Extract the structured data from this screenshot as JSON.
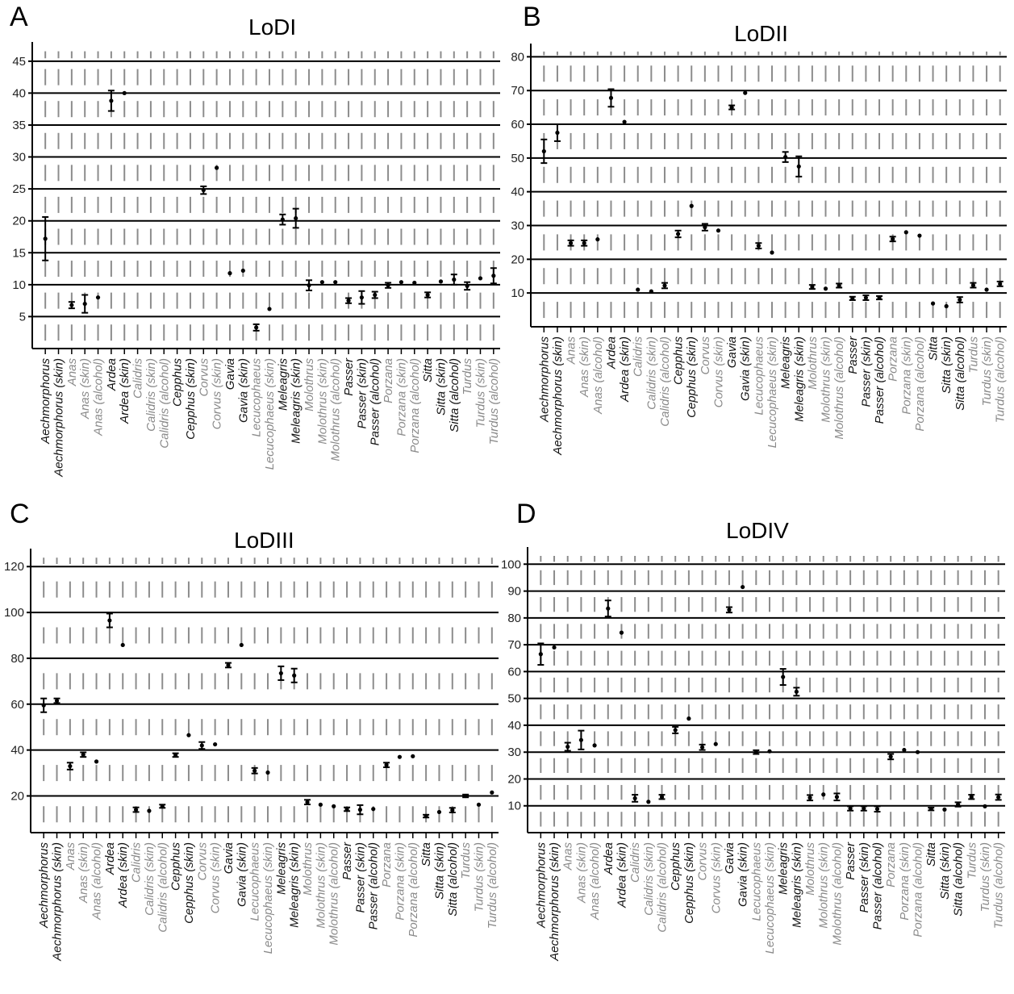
{
  "colors": {
    "dark_label": "#111111",
    "gray_label": "#8a8a8a",
    "grid": "#000000",
    "gap_tick": "#8c8c8c",
    "point": "#000000"
  },
  "chart_data": [
    {
      "type": "scatter",
      "panel": "A",
      "title": "LoDI",
      "ylim": [
        0,
        47
      ],
      "yticks": [
        5,
        10,
        15,
        20,
        25,
        30,
        35,
        40,
        45
      ],
      "grid": true,
      "categories": [
        "Aechmorphorus",
        "Aechmorphorus (skin)",
        "Anas",
        "Anas (skin)",
        "Anas (alcohol)",
        "Ardea",
        "Ardea (skin)",
        "Calidris",
        "Calidris (skin)",
        "Calidris (alcohol)",
        "Cepphus",
        "Cepphus (skin)",
        "Corvus",
        "Corvus (skin)",
        "Gavia",
        "Gavia (skin)",
        "Lecucophaeus",
        "Lecucophaeus (skin)",
        "Meleagris",
        "Meleagris (skin)",
        "Molothrus",
        "Molothrus (skin)",
        "Molothrus (alcohol)",
        "Passer",
        "Passer (skin)",
        "Passer (alcohol)",
        "Porzana",
        "Porzana (skin)",
        "Porzana (alcohol)",
        "Sitta",
        "Sitta (skin)",
        "Sitta (alcohol)",
        "Turdus",
        "Turdus (skin)",
        "Turdus (alcohol)"
      ],
      "label_gray": [
        false,
        false,
        true,
        true,
        true,
        false,
        false,
        true,
        true,
        true,
        false,
        false,
        true,
        true,
        false,
        false,
        true,
        true,
        false,
        false,
        true,
        true,
        true,
        false,
        false,
        false,
        true,
        true,
        true,
        false,
        false,
        false,
        true,
        true,
        true
      ],
      "points": [
        {
          "i": 0,
          "y": 17.2,
          "lo": 13.8,
          "hi": 20.6
        },
        {
          "i": 2,
          "y": 6.8,
          "lo": 6.3,
          "hi": 7.3
        },
        {
          "i": 3,
          "y": 7.0,
          "lo": 5.6,
          "hi": 8.4
        },
        {
          "i": 4,
          "y": 8.0
        },
        {
          "i": 5,
          "y": 38.8,
          "lo": 37.2,
          "hi": 40.4
        },
        {
          "i": 6,
          "y": 40.0
        },
        {
          "i": 12,
          "y": 24.8,
          "lo": 24.2,
          "hi": 25.4
        },
        {
          "i": 13,
          "y": 28.3
        },
        {
          "i": 14,
          "y": 11.8
        },
        {
          "i": 15,
          "y": 12.2
        },
        {
          "i": 16,
          "y": 3.3,
          "lo": 2.8,
          "hi": 3.8
        },
        {
          "i": 17,
          "y": 6.2
        },
        {
          "i": 18,
          "y": 20.2,
          "lo": 19.4,
          "hi": 21.0
        },
        {
          "i": 19,
          "y": 20.4,
          "lo": 18.9,
          "hi": 21.9
        },
        {
          "i": 20,
          "y": 9.9,
          "lo": 9.1,
          "hi": 10.7
        },
        {
          "i": 21,
          "y": 10.4
        },
        {
          "i": 22,
          "y": 10.4
        },
        {
          "i": 23,
          "y": 7.5,
          "lo": 7.1,
          "hi": 7.9
        },
        {
          "i": 24,
          "y": 8.0,
          "lo": 7.0,
          "hi": 9.0
        },
        {
          "i": 25,
          "y": 8.4,
          "lo": 7.9,
          "hi": 8.9
        },
        {
          "i": 26,
          "y": 9.9,
          "lo": 9.5,
          "hi": 10.3
        },
        {
          "i": 27,
          "y": 10.4
        },
        {
          "i": 28,
          "y": 10.3
        },
        {
          "i": 29,
          "y": 8.4,
          "lo": 8.0,
          "hi": 8.8
        },
        {
          "i": 30,
          "y": 10.5
        },
        {
          "i": 31,
          "y": 10.8,
          "lo": 10.0,
          "hi": 11.6
        },
        {
          "i": 32,
          "y": 9.8,
          "lo": 9.2,
          "hi": 10.4
        },
        {
          "i": 33,
          "y": 11.0
        },
        {
          "i": 34,
          "y": 11.4,
          "lo": 10.2,
          "hi": 12.6
        }
      ]
    },
    {
      "type": "scatter",
      "panel": "B",
      "title": "LoDII",
      "ylim": [
        0,
        82
      ],
      "yticks": [
        10,
        20,
        30,
        40,
        50,
        60,
        70,
        80
      ],
      "grid": true,
      "categories": [
        "Aechmorphorus",
        "Aechmorphorus (skin)",
        "Anas",
        "Anas (skin)",
        "Anas (alcohol)",
        "Ardea",
        "Ardea (skin)",
        "Calidris",
        "Calidris (skin)",
        "Calidris (alcohol)",
        "Cepphus",
        "Cepphus (skin)",
        "Corvus",
        "Corvus (skin)",
        "Gavia",
        "Gavia (skin)",
        "Lecucophaeus",
        "Lecucophaeus (skin)",
        "Meleagris",
        "Meleagris (skin)",
        "Molothrus",
        "Molothrus (skin)",
        "Molothrus (alcohol)",
        "Passer",
        "Passer (skin)",
        "Passer (alcohol)",
        "Porzana",
        "Porzana (skin)",
        "Porzana (alcohol)",
        "Sitta",
        "Sitta (skin)",
        "Sitta (alcohol)",
        "Turdus",
        "Turdus (skin)",
        "Turdus (alcohol)"
      ],
      "label_gray": [
        false,
        false,
        true,
        true,
        true,
        false,
        false,
        true,
        true,
        true,
        false,
        false,
        true,
        true,
        false,
        false,
        true,
        true,
        false,
        false,
        true,
        true,
        true,
        false,
        false,
        false,
        true,
        true,
        true,
        false,
        false,
        false,
        true,
        true,
        true
      ],
      "points": [
        {
          "i": 0,
          "y": 52.0,
          "lo": 48.5,
          "hi": 55.5
        },
        {
          "i": 1,
          "y": 57.5,
          "lo": 55.0,
          "hi": 60.0
        },
        {
          "i": 2,
          "y": 24.8,
          "lo": 24.0,
          "hi": 25.6
        },
        {
          "i": 3,
          "y": 24.8,
          "lo": 24.0,
          "hi": 25.6
        },
        {
          "i": 4,
          "y": 25.9
        },
        {
          "i": 5,
          "y": 67.8,
          "lo": 65.2,
          "hi": 70.4
        },
        {
          "i": 6,
          "y": 60.7
        },
        {
          "i": 7,
          "y": 11.0
        },
        {
          "i": 8,
          "y": 10.5
        },
        {
          "i": 9,
          "y": 12.2,
          "lo": 11.4,
          "hi": 13.0
        },
        {
          "i": 11,
          "y": 35.8
        },
        {
          "i": 10,
          "y": 27.5,
          "lo": 26.5,
          "hi": 28.5
        },
        {
          "i": 12,
          "y": 29.5,
          "lo": 28.5,
          "hi": 30.5
        },
        {
          "i": 13,
          "y": 28.5
        },
        {
          "i": 14,
          "y": 65.0,
          "lo": 64.4,
          "hi": 65.6
        },
        {
          "i": 15,
          "y": 69.3
        },
        {
          "i": 16,
          "y": 24.0,
          "lo": 23.2,
          "hi": 24.8
        },
        {
          "i": 17,
          "y": 22.0
        },
        {
          "i": 18,
          "y": 50.3,
          "lo": 48.8,
          "hi": 51.8
        },
        {
          "i": 19,
          "y": 47.5,
          "lo": 44.5,
          "hi": 50.5
        },
        {
          "i": 20,
          "y": 11.8,
          "lo": 11.2,
          "hi": 12.4
        },
        {
          "i": 21,
          "y": 11.3
        },
        {
          "i": 22,
          "y": 12.2,
          "lo": 11.6,
          "hi": 12.8
        },
        {
          "i": 23,
          "y": 8.4,
          "lo": 7.9,
          "hi": 8.9
        },
        {
          "i": 24,
          "y": 8.6,
          "lo": 7.9,
          "hi": 9.3
        },
        {
          "i": 25,
          "y": 8.6,
          "lo": 8.1,
          "hi": 9.1
        },
        {
          "i": 26,
          "y": 26.0,
          "lo": 25.3,
          "hi": 26.7
        },
        {
          "i": 27,
          "y": 28.0
        },
        {
          "i": 28,
          "y": 27.0
        },
        {
          "i": 29,
          "y": 6.9
        },
        {
          "i": 30,
          "y": 6.1
        },
        {
          "i": 31,
          "y": 8.0,
          "lo": 7.2,
          "hi": 8.8
        },
        {
          "i": 32,
          "y": 12.3,
          "lo": 11.6,
          "hi": 13.0
        },
        {
          "i": 33,
          "y": 11.0
        },
        {
          "i": 34,
          "y": 12.7,
          "lo": 12.0,
          "hi": 13.4
        }
      ]
    },
    {
      "type": "scatter",
      "panel": "C",
      "title": "LoDIII",
      "ylim": [
        4,
        125
      ],
      "yticks": [
        20,
        40,
        60,
        80,
        100,
        120
      ],
      "grid": true,
      "categories": [
        "Aechmorphorus",
        "Aechmorphorus (skin)",
        "Anas",
        "Anas (skin)",
        "Anas (alcohol)",
        "Ardea",
        "Ardea (skin)",
        "Calidris",
        "Calidris (skin)",
        "Calidris (alcohol)",
        "Cepphus",
        "Cepphus (skin)",
        "Corvus",
        "Corvus (skin)",
        "Gavia",
        "Gavia (skin)",
        "Lecucophaeus",
        "Lecucophaeus (skin)",
        "Meleagris",
        "Meleagris (skin)",
        "Molothrus",
        "Molothrus (skin)",
        "Molothrus (alcohol)",
        "Passer",
        "Passer (skin)",
        "Passer (alcohol)",
        "Porzana",
        "Porzana (skin)",
        "Porzana (alcohol)",
        "Sitta",
        "Sitta (skin)",
        "Sitta (alcohol)",
        "Turdus",
        "Turdus (skin)",
        "Turdus (alcohol)"
      ],
      "label_gray": [
        false,
        false,
        true,
        true,
        true,
        false,
        false,
        true,
        true,
        true,
        false,
        false,
        true,
        true,
        false,
        false,
        true,
        true,
        false,
        false,
        true,
        true,
        true,
        false,
        false,
        false,
        true,
        true,
        true,
        false,
        false,
        false,
        true,
        true,
        true
      ],
      "points": [
        {
          "i": 0,
          "y": 59.5,
          "lo": 56.5,
          "hi": 62.5
        },
        {
          "i": 1,
          "y": 61.5,
          "lo": 60.5,
          "hi": 62.5
        },
        {
          "i": 2,
          "y": 33.0,
          "lo": 31.5,
          "hi": 34.5
        },
        {
          "i": 3,
          "y": 38.0,
          "lo": 37.0,
          "hi": 39.0
        },
        {
          "i": 4,
          "y": 35.0
        },
        {
          "i": 5,
          "y": 96.5,
          "lo": 93.5,
          "hi": 99.5
        },
        {
          "i": 6,
          "y": 85.8
        },
        {
          "i": 7,
          "y": 14.0,
          "lo": 13.0,
          "hi": 15.0
        },
        {
          "i": 8,
          "y": 13.5
        },
        {
          "i": 9,
          "y": 15.5,
          "lo": 14.8,
          "hi": 16.2
        },
        {
          "i": 10,
          "y": 37.8,
          "lo": 37.0,
          "hi": 38.6
        },
        {
          "i": 11,
          "y": 46.5
        },
        {
          "i": 12,
          "y": 42.0,
          "lo": 40.5,
          "hi": 43.5
        },
        {
          "i": 13,
          "y": 42.5
        },
        {
          "i": 14,
          "y": 77.0,
          "lo": 76.0,
          "hi": 78.0
        },
        {
          "i": 15,
          "y": 85.8
        },
        {
          "i": 16,
          "y": 31.0,
          "lo": 29.8,
          "hi": 32.2
        },
        {
          "i": 17,
          "y": 30.2
        },
        {
          "i": 18,
          "y": 73.5,
          "lo": 70.5,
          "hi": 76.5
        },
        {
          "i": 19,
          "y": 72.5,
          "lo": 69.5,
          "hi": 75.5
        },
        {
          "i": 20,
          "y": 17.3,
          "lo": 16.3,
          "hi": 18.3
        },
        {
          "i": 21,
          "y": 16.2
        },
        {
          "i": 22,
          "y": 15.5
        },
        {
          "i": 23,
          "y": 14.2,
          "lo": 13.4,
          "hi": 15.0
        },
        {
          "i": 24,
          "y": 14.0,
          "lo": 12.0,
          "hi": 16.0
        },
        {
          "i": 25,
          "y": 14.3
        },
        {
          "i": 26,
          "y": 33.5,
          "lo": 32.5,
          "hi": 34.5
        },
        {
          "i": 27,
          "y": 37.0
        },
        {
          "i": 28,
          "y": 37.3
        },
        {
          "i": 29,
          "y": 11.2,
          "lo": 10.6,
          "hi": 11.8
        },
        {
          "i": 30,
          "y": 13.0
        },
        {
          "i": 31,
          "y": 13.8,
          "lo": 12.8,
          "hi": 14.8
        },
        {
          "i": 32,
          "y": 20.0,
          "lo": 19.4,
          "hi": 20.6
        },
        {
          "i": 33,
          "y": 16.2
        },
        {
          "i": 34,
          "y": 21.5
        }
      ]
    },
    {
      "type": "scatter",
      "panel": "D",
      "title": "LoDIV",
      "ylim": [
        0,
        104
      ],
      "yticks": [
        10,
        20,
        30,
        40,
        50,
        60,
        70,
        80,
        90,
        100
      ],
      "grid": true,
      "categories": [
        "Aechmorphorus",
        "Aechmorphorus (skin)",
        "Anas",
        "Anas (skin)",
        "Anas (alcohol)",
        "Ardea",
        "Ardea (skin)",
        "Calidris",
        "Calidris (skin)",
        "Calidris (alcohol)",
        "Cepphus",
        "Cepphus (skin)",
        "Corvus",
        "Corvus (skin)",
        "Gavia",
        "Gavia (skin)",
        "Lecucophaeus",
        "Lecucophaeus (skin)",
        "Meleagris",
        "Meleagris (skin)",
        "Molothrus",
        "Molothrus (skin)",
        "Molothrus (alcohol)",
        "Passer",
        "Passer (skin)",
        "Passer (alcohol)",
        "Porzana",
        "Porzana (skin)",
        "Porzana (alcohol)",
        "Sitta",
        "Sitta (skin)",
        "Sitta (alcohol)",
        "Turdus",
        "Turdus (skin)",
        "Turdus (alcohol)"
      ],
      "label_gray": [
        false,
        false,
        true,
        true,
        true,
        false,
        false,
        true,
        true,
        true,
        false,
        false,
        true,
        true,
        false,
        false,
        true,
        true,
        false,
        false,
        true,
        true,
        true,
        false,
        false,
        false,
        true,
        true,
        true,
        false,
        false,
        false,
        true,
        true,
        true
      ],
      "points": [
        {
          "i": 0,
          "y": 66.5,
          "lo": 62.5,
          "hi": 70.5
        },
        {
          "i": 1,
          "y": 69.0
        },
        {
          "i": 2,
          "y": 32.0,
          "lo": 30.5,
          "hi": 33.5
        },
        {
          "i": 3,
          "y": 34.5,
          "lo": 31.0,
          "hi": 38.0
        },
        {
          "i": 4,
          "y": 32.5
        },
        {
          "i": 5,
          "y": 83.5,
          "lo": 80.5,
          "hi": 86.5
        },
        {
          "i": 6,
          "y": 74.5
        },
        {
          "i": 7,
          "y": 12.8,
          "lo": 11.5,
          "hi": 14.1
        },
        {
          "i": 8,
          "y": 11.5
        },
        {
          "i": 9,
          "y": 13.3,
          "lo": 12.5,
          "hi": 14.1
        },
        {
          "i": 10,
          "y": 38.2,
          "lo": 37.0,
          "hi": 39.4
        },
        {
          "i": 11,
          "y": 42.5
        },
        {
          "i": 12,
          "y": 31.8,
          "lo": 30.8,
          "hi": 32.8
        },
        {
          "i": 13,
          "y": 33.0
        },
        {
          "i": 14,
          "y": 83.0,
          "lo": 82.0,
          "hi": 84.0
        },
        {
          "i": 15,
          "y": 91.5
        },
        {
          "i": 16,
          "y": 30.0,
          "lo": 29.3,
          "hi": 30.7
        },
        {
          "i": 17,
          "y": 30.3
        },
        {
          "i": 18,
          "y": 58.0,
          "lo": 55.0,
          "hi": 61.0
        },
        {
          "i": 19,
          "y": 52.5,
          "lo": 51.0,
          "hi": 54.0
        },
        {
          "i": 20,
          "y": 13.0,
          "lo": 12.0,
          "hi": 14.0
        },
        {
          "i": 21,
          "y": 14.2
        },
        {
          "i": 22,
          "y": 13.3,
          "lo": 12.0,
          "hi": 14.6
        },
        {
          "i": 23,
          "y": 9.0,
          "lo": 8.2,
          "hi": 9.8
        },
        {
          "i": 24,
          "y": 9.0,
          "lo": 8.2,
          "hi": 9.8
        },
        {
          "i": 25,
          "y": 8.8,
          "lo": 7.8,
          "hi": 9.8
        },
        {
          "i": 26,
          "y": 28.3,
          "lo": 27.3,
          "hi": 29.3
        },
        {
          "i": 27,
          "y": 30.8
        },
        {
          "i": 28,
          "y": 30.0
        },
        {
          "i": 29,
          "y": 8.8,
          "lo": 8.3,
          "hi": 9.3
        },
        {
          "i": 30,
          "y": 8.6
        },
        {
          "i": 31,
          "y": 10.5,
          "lo": 9.7,
          "hi": 11.3
        },
        {
          "i": 32,
          "y": 13.3,
          "lo": 12.5,
          "hi": 14.1
        },
        {
          "i": 33,
          "y": 9.8
        },
        {
          "i": 34,
          "y": 13.2,
          "lo": 12.2,
          "hi": 14.2
        }
      ]
    }
  ]
}
